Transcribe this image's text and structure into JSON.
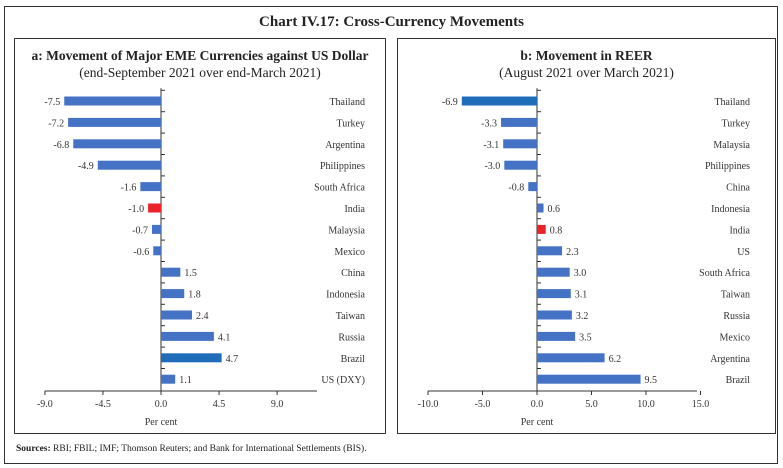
{
  "title": "Chart IV.17: Cross-Currency Movements",
  "sources_label": "Sources:",
  "sources_text": " RBI; FBIL; IMF; Thomson Reuters; and Bank for International Settlements (BIS).",
  "colors": {
    "bar": "#4472C4",
    "highlight_blue": "#1F6DB8",
    "india": "#E8232A"
  },
  "chart_data": [
    {
      "type": "bar",
      "orientation": "horizontal",
      "title": "a: Movement of Major EME Currencies against US Dollar",
      "subtitle": "(end-September 2021 over end-March 2021)",
      "xlabel": "Per cent",
      "xlim": [
        -9,
        12
      ],
      "xticks": [
        "-9.0",
        "-4.5",
        "0.0",
        "4.5",
        "9.0"
      ],
      "xtick_values": [
        -9,
        -4.5,
        0,
        4.5,
        9
      ],
      "categories": [
        "Thailand",
        "Turkey",
        "Argentina",
        "Philippines",
        "South Africa",
        "India",
        "Malaysia",
        "Mexico",
        "China",
        "Indonesia",
        "Taiwan",
        "Russia",
        "Brazil",
        "US (DXY)"
      ],
      "values": [
        -7.5,
        -7.2,
        -6.8,
        -4.9,
        -1.6,
        -1.0,
        -0.7,
        -0.6,
        1.5,
        1.8,
        2.4,
        4.1,
        4.7,
        1.1
      ],
      "labels": [
        "-7.5",
        "-7.2",
        "-6.8",
        "-4.9",
        "-1.6",
        "-1.0",
        "-0.7",
        "-0.6",
        "1.5",
        "1.8",
        "2.4",
        "4.1",
        "4.7",
        "1.1"
      ],
      "highlight": {
        "India": "india",
        "Brazil": "highlight_blue"
      }
    },
    {
      "type": "bar",
      "orientation": "horizontal",
      "title": "b: Movement in REER",
      "subtitle": "(August 2021 over March 2021)",
      "xlabel": "Per cent",
      "xlim": [
        -10,
        15
      ],
      "xticks": [
        "-10.0",
        "-5.0",
        "0.0",
        "5.0",
        "10.0",
        "15.0"
      ],
      "xtick_values": [
        -10,
        -5,
        0,
        5,
        10,
        15
      ],
      "categories": [
        "Thailand",
        "Turkey",
        "Malaysia",
        "Philippines",
        "China",
        "Indonesia",
        "India",
        "US",
        "South Africa",
        "Taiwan",
        "Russia",
        "Mexico",
        "Argentina",
        "Brazil"
      ],
      "values": [
        -6.9,
        -3.3,
        -3.1,
        -3.0,
        -0.8,
        0.6,
        0.8,
        2.3,
        3.0,
        3.1,
        3.2,
        3.5,
        6.2,
        9.5
      ],
      "labels": [
        "-6.9",
        "-3.3",
        "-3.1",
        "-3.0",
        "-0.8",
        "0.6",
        "0.8",
        "2.3",
        "3.0",
        "3.1",
        "3.2",
        "3.5",
        "6.2",
        "9.5"
      ],
      "highlight": {
        "India": "india",
        "Thailand": "highlight_blue"
      }
    }
  ]
}
